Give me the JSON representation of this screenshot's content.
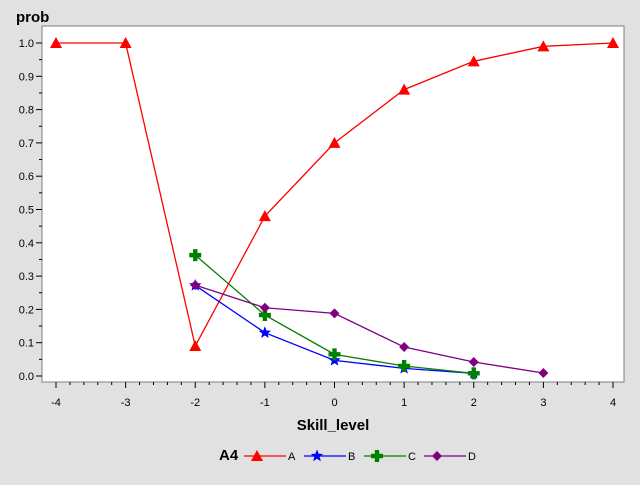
{
  "chart_data": {
    "type": "line",
    "ylabel": "prob",
    "xlabel": "Skill_level",
    "xlim": [
      -4,
      4
    ],
    "ylim": [
      0,
      1
    ],
    "x_ticks": [
      "-4",
      "-3",
      "-2",
      "-1",
      "0",
      "1",
      "2",
      "3",
      "4"
    ],
    "y_ticks": [
      "0.0",
      "0.1",
      "0.2",
      "0.3",
      "0.4",
      "0.5",
      "0.6",
      "0.7",
      "0.8",
      "0.9",
      "1.0"
    ],
    "grid": false,
    "legend": {
      "title": "A4",
      "placement": "bottom"
    },
    "series": [
      {
        "name": "A",
        "color": "#ff0000",
        "marker": "triangle",
        "x": [
          -4,
          -3,
          -2,
          -1,
          0,
          1,
          2,
          3,
          4
        ],
        "y": [
          1.0,
          1.0,
          0.09,
          0.48,
          0.7,
          0.86,
          0.945,
          0.99,
          1.0
        ]
      },
      {
        "name": "B",
        "color": "#0000ff",
        "marker": "star",
        "x": [
          -2,
          -1,
          0,
          1,
          2
        ],
        "y": [
          0.272,
          0.13,
          0.047,
          0.023,
          0.008
        ]
      },
      {
        "name": "C",
        "color": "#008000",
        "marker": "plus",
        "x": [
          -2,
          -1,
          0,
          1,
          2
        ],
        "y": [
          0.363,
          0.183,
          0.065,
          0.03,
          0.008
        ]
      },
      {
        "name": "D",
        "color": "#800080",
        "marker": "diamond",
        "x": [
          -2,
          -1,
          0,
          1,
          2,
          3
        ],
        "y": [
          0.273,
          0.205,
          0.188,
          0.087,
          0.042,
          0.009
        ]
      }
    ]
  }
}
